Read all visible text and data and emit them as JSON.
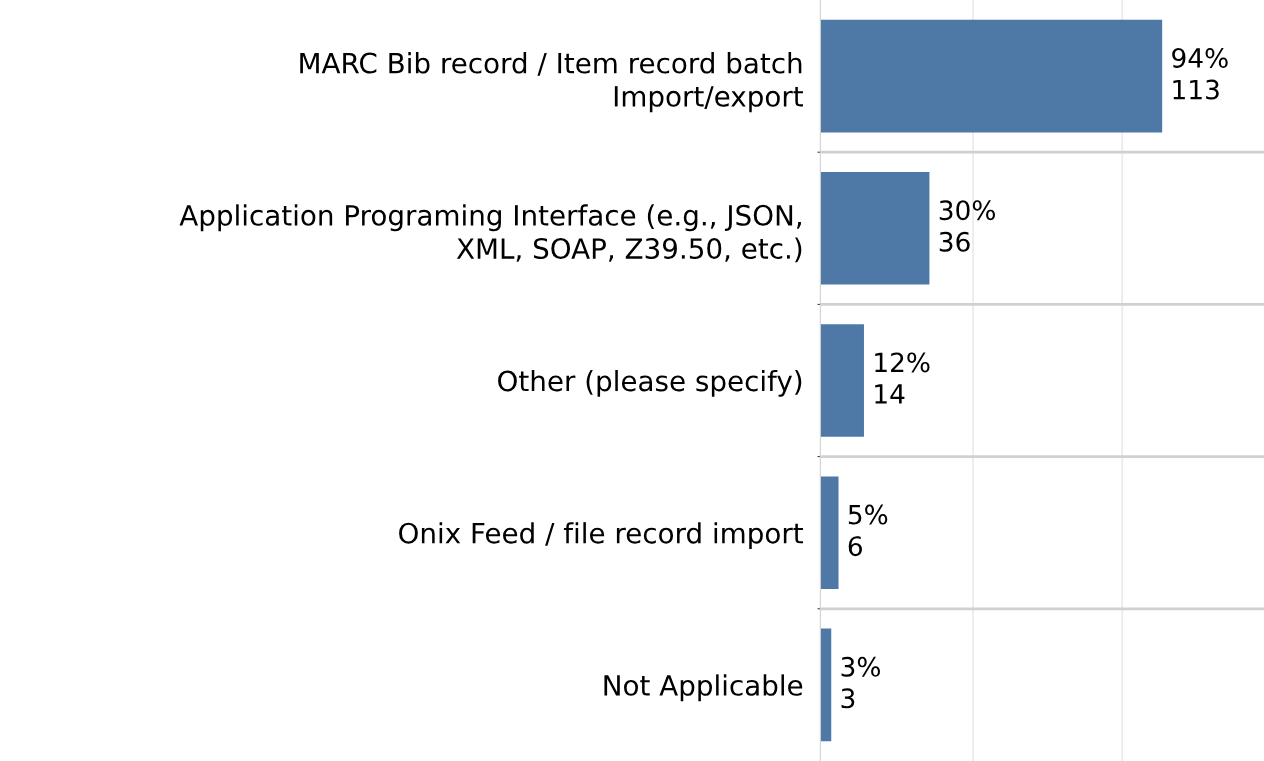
{
  "chart_data": {
    "type": "bar",
    "orientation": "horizontal",
    "categories": [
      "MARC Bib record / Item record batch\nImport/export",
      "Application Programing Interface (e.g., JSON,\nXML, SOAP, Z39.50, etc.)",
      "Other (please specify)",
      "Onix Feed / file record import",
      "Not Applicable"
    ],
    "values": [
      94,
      30,
      12,
      5,
      3
    ],
    "value_labels": [
      "94%\n113",
      "30%\n36",
      "12%\n14",
      "5%\n6",
      "3%\n3"
    ],
    "color": "#4e79a7",
    "xlim": [
      0,
      122
    ],
    "xticks": [
      {
        "value": 42,
        "label": null
      },
      {
        "value": 83,
        "label": null
      }
    ],
    "grid": true
  }
}
